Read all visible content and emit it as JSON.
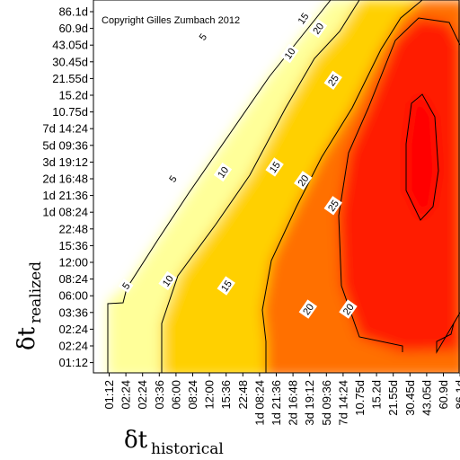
{
  "chart_data": {
    "type": "heatmap",
    "title": "",
    "annotation": "Copyright Gilles Zumbach 2012",
    "xlabel": {
      "symbol": "δt",
      "subscript": "historical"
    },
    "ylabel": {
      "symbol": "δt",
      "subscript": "realized"
    },
    "x_ticks": [
      "01:12",
      "02:24",
      "02:24",
      "03:36",
      "06:00",
      "08:24",
      "12:00",
      "15:36",
      "22:48",
      "1d 08:24",
      "1d 21:36",
      "2d 16:48",
      "3d 19:12",
      "5d 09:36",
      "7d 14:24",
      "10.75d",
      "15.2d",
      "21.55d",
      "30.45d",
      "43.05d",
      "60.9d",
      "86.1d"
    ],
    "y_ticks": [
      "86.1d",
      "60.9d",
      "43.05d",
      "30.45d",
      "21.55d",
      "15.2d",
      "10.75d",
      "7d 14:24",
      "5d 09:36",
      "3d 19:12",
      "2d 16:48",
      "1d 21:36",
      "1d 08:24",
      "22:48",
      "15:36",
      "12:00",
      "08:24",
      "06:00",
      "03:36",
      "02:24",
      "02:24",
      "01:12"
    ],
    "contour_levels": [
      5,
      10,
      15,
      20,
      25
    ],
    "colormap": [
      "#ffffff",
      "#ffff4d",
      "#ff7a00",
      "#ff0000"
    ],
    "grid": false,
    "contour_labels": [
      {
        "value": "5",
        "x": 5.6,
        "y": 19.5
      },
      {
        "value": "5",
        "x": 3.8,
        "y": 11.0
      },
      {
        "value": "5",
        "x": 1.0,
        "y": 4.6
      },
      {
        "value": "10",
        "x": 10.8,
        "y": 18.5
      },
      {
        "value": "10",
        "x": 6.8,
        "y": 11.4
      },
      {
        "value": "10",
        "x": 3.5,
        "y": 4.9
      },
      {
        "value": "15",
        "x": 11.6,
        "y": 20.6
      },
      {
        "value": "15",
        "x": 9.9,
        "y": 11.7
      },
      {
        "value": "15",
        "x": 7.0,
        "y": 4.6
      },
      {
        "value": "20",
        "x": 12.5,
        "y": 20.0
      },
      {
        "value": "20",
        "x": 11.6,
        "y": 10.9
      },
      {
        "value": "20",
        "x": 11.9,
        "y": 3.2
      },
      {
        "value": "20",
        "x": 14.3,
        "y": 3.2
      },
      {
        "value": "25",
        "x": 13.4,
        "y": 16.9
      },
      {
        "value": "25",
        "x": 13.4,
        "y": 9.4
      }
    ]
  }
}
